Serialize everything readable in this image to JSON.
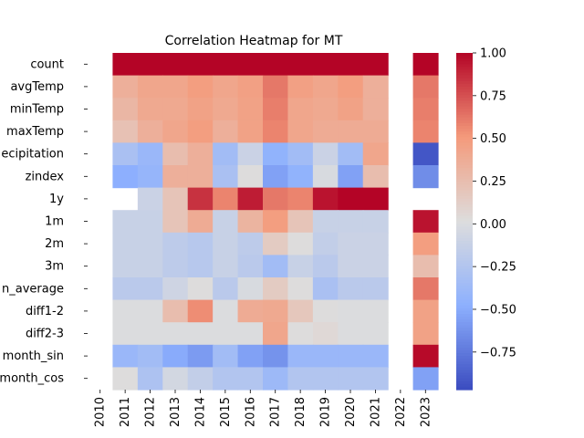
{
  "chart_data": {
    "type": "heatmap",
    "title": "Correlation Heatmap for MT",
    "rows": [
      "count",
      "avgTemp",
      "minTemp",
      "maxTemp",
      "precipitation",
      "zindex",
      "1y",
      "1m",
      "2m",
      "3m",
      "rolling_mean_average",
      "diff1-2",
      "diff2-3",
      "month_sin",
      "month_cos"
    ],
    "row_labels_visible": [
      "count",
      "avgTemp",
      "minTemp",
      "maxTemp",
      "ecipitation",
      "zindex",
      "1y",
      "1m",
      "2m",
      "3m",
      "n_average",
      "diff1-2",
      "diff2-3",
      "month_sin",
      "month_cos"
    ],
    "columns": [
      "2010",
      "2011",
      "2012",
      "2013",
      "2014",
      "2015",
      "2016",
      "2017",
      "2018",
      "2019",
      "2020",
      "2021",
      "2022",
      "2023"
    ],
    "values": [
      [
        null,
        1.0,
        1.0,
        1.0,
        1.0,
        1.0,
        1.0,
        1.0,
        1.0,
        1.0,
        1.0,
        1.0,
        null,
        1.0
      ],
      [
        null,
        0.35,
        0.42,
        0.42,
        0.48,
        0.42,
        0.46,
        0.62,
        0.46,
        0.42,
        0.48,
        0.35,
        null,
        0.62
      ],
      [
        null,
        0.3,
        0.4,
        0.4,
        0.45,
        0.4,
        0.45,
        0.6,
        0.42,
        0.4,
        0.45,
        0.35,
        null,
        0.6
      ],
      [
        null,
        0.22,
        0.35,
        0.42,
        0.48,
        0.35,
        0.45,
        0.58,
        0.42,
        0.38,
        0.38,
        0.38,
        null,
        0.58
      ],
      [
        null,
        -0.3,
        -0.4,
        0.25,
        0.35,
        -0.35,
        -0.1,
        -0.45,
        -0.35,
        -0.1,
        -0.35,
        0.42,
        null,
        -0.92
      ],
      [
        null,
        -0.48,
        -0.42,
        0.35,
        0.35,
        -0.3,
        0.02,
        -0.55,
        -0.45,
        -0.02,
        -0.55,
        0.25,
        null,
        -0.65
      ],
      [
        null,
        null,
        -0.1,
        0.2,
        0.85,
        0.58,
        0.92,
        0.62,
        0.58,
        0.95,
        1.0,
        1.0,
        null,
        null
      ],
      [
        null,
        -0.12,
        -0.12,
        0.2,
        0.38,
        -0.12,
        0.32,
        0.48,
        0.2,
        -0.12,
        -0.12,
        -0.12,
        null,
        0.95
      ],
      [
        null,
        -0.12,
        -0.12,
        -0.18,
        -0.22,
        -0.12,
        -0.18,
        0.15,
        0.02,
        -0.15,
        -0.1,
        -0.1,
        null,
        0.48
      ],
      [
        null,
        -0.12,
        -0.12,
        -0.18,
        -0.22,
        -0.12,
        -0.2,
        -0.35,
        -0.12,
        -0.2,
        -0.1,
        -0.1,
        null,
        0.25
      ],
      [
        null,
        -0.2,
        -0.2,
        -0.08,
        0.02,
        -0.2,
        -0.02,
        0.15,
        0.02,
        -0.3,
        -0.2,
        -0.2,
        null,
        0.62
      ],
      [
        null,
        0.0,
        0.0,
        0.25,
        0.55,
        0.0,
        0.38,
        0.4,
        0.18,
        0.02,
        0.0,
        0.0,
        null,
        0.45
      ],
      [
        null,
        0.0,
        0.0,
        0.0,
        0.0,
        0.0,
        0.0,
        0.42,
        0.02,
        0.05,
        0.0,
        0.0,
        null,
        0.45
      ],
      [
        null,
        -0.4,
        -0.35,
        -0.5,
        -0.58,
        -0.35,
        -0.55,
        -0.62,
        -0.4,
        -0.4,
        -0.4,
        -0.4,
        null,
        0.98
      ],
      [
        null,
        0.02,
        -0.28,
        -0.05,
        -0.15,
        -0.25,
        -0.25,
        -0.38,
        -0.25,
        -0.25,
        -0.25,
        -0.25,
        null,
        -0.55
      ]
    ],
    "vmin": -0.97,
    "vmax": 1.0,
    "colormap": "coolwarm",
    "colorbar_ticks": [
      "1.00",
      "0.75",
      "0.50",
      "0.25",
      "0.00",
      "−0.25",
      "−0.50",
      "−0.75"
    ],
    "colorbar_tick_values": [
      1.0,
      0.75,
      0.5,
      0.25,
      0.0,
      -0.25,
      -0.5,
      -0.75
    ],
    "grid": false,
    "legend": "colorbar-right"
  }
}
